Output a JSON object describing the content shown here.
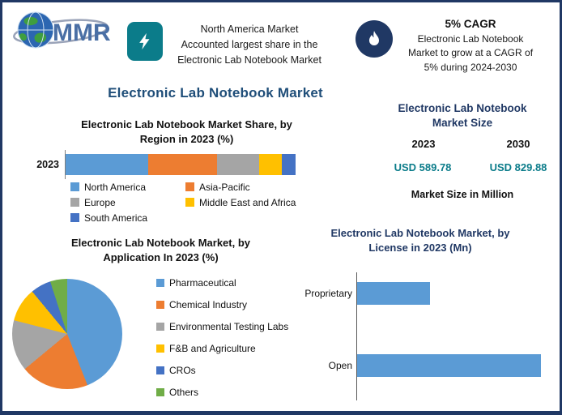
{
  "brand": {
    "logo_text": "MMR"
  },
  "colors": {
    "navy": "#203864",
    "teal": "#0B7C8A",
    "accent_blue": "#5B9BD5"
  },
  "header": {
    "highlight_region": {
      "lines": [
        "North America Market",
        "Accounted largest share in the",
        "Electronic Lab Notebook Market"
      ]
    },
    "highlight_cagr": {
      "title": "5% CAGR",
      "lines": [
        "Electronic Lab Notebook",
        "Market to grow at a CAGR of",
        "5% during 2024-2030"
      ]
    }
  },
  "page_title": "Electronic Lab Notebook Market",
  "market_size": {
    "title": "Electronic Lab Notebook Market Size",
    "years": [
      "2023",
      "2030"
    ],
    "values": [
      "USD 589.78",
      "USD 829.88"
    ],
    "unit_note": "Market Size in Million"
  },
  "chart_data": [
    {
      "type": "bar",
      "subtype": "stacked-horizontal",
      "title": "Electronic Lab Notebook Market Share, by Region in 2023 (%)",
      "categories": [
        "2023"
      ],
      "series": [
        {
          "name": "North America",
          "color": "#5B9BD5",
          "values": [
            36
          ]
        },
        {
          "name": "Asia-Pacific",
          "color": "#ED7D31",
          "values": [
            30
          ]
        },
        {
          "name": "Europe",
          "color": "#A5A5A5",
          "values": [
            18
          ]
        },
        {
          "name": "Middle East and Africa",
          "color": "#FFC000",
          "values": [
            10
          ]
        },
        {
          "name": "South America",
          "color": "#4472C4",
          "values": [
            6
          ]
        }
      ],
      "xlim": [
        0,
        100
      ],
      "legend_position": "bottom"
    },
    {
      "type": "pie",
      "title": "Electronic Lab Notebook Market, by Application In 2023 (%)",
      "labels": [
        "Pharmaceutical",
        "Chemical Industry",
        "Environmental Testing Labs",
        "F&B and Agriculture",
        "CROs",
        "Others"
      ],
      "values": [
        44,
        20,
        15,
        10,
        6,
        5
      ],
      "colors": [
        "#5B9BD5",
        "#ED7D31",
        "#A5A5A5",
        "#FFC000",
        "#4472C4",
        "#70AD47"
      ],
      "legend_position": "right"
    },
    {
      "type": "bar",
      "subtype": "horizontal",
      "title": "Electronic Lab Notebook Market, by License in 2023 (Mn)",
      "categories": [
        "Proprietary",
        "Open"
      ],
      "values": [
        170,
        430
      ],
      "color": "#5B9BD5",
      "xlim": [
        0,
        450
      ]
    }
  ]
}
